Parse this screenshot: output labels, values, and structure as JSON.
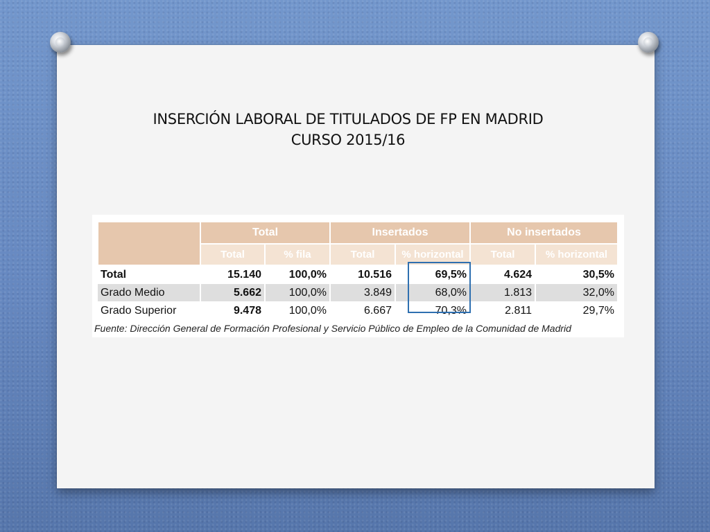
{
  "slide": {
    "title_line1": "INSERCIÓN LABORAL DE TITULADOS DE FP EN MADRID",
    "title_line2": "CURSO 2015/16"
  },
  "table": {
    "group_headers": [
      "Total",
      "Insertados",
      "No insertados"
    ],
    "sub_headers": [
      "Total",
      "% fila",
      "Total",
      "% horizontal",
      "Total",
      "% horizontal"
    ],
    "rows": [
      {
        "label": "Total",
        "values": [
          "15.140",
          "100,0%",
          "10.516",
          "69,5%",
          "4.624",
          "30,5%"
        ]
      },
      {
        "label": "Grado Medio",
        "values": [
          "5.662",
          "100,0%",
          "3.849",
          "68,0%",
          "1.813",
          "32,0%"
        ]
      },
      {
        "label": "Grado Superior",
        "values": [
          "9.478",
          "100,0%",
          "6.667",
          "70,3%",
          "2.811",
          "29,7%"
        ]
      }
    ],
    "highlight_color": "#2e6fb0",
    "header_color": "#e6c7ad",
    "subheader_color": "#f4e3d3"
  },
  "source_note": "Fuente: Dirección General de Formación Profesional y Servicio Público de Empleo de la Comunidad de Madrid"
}
